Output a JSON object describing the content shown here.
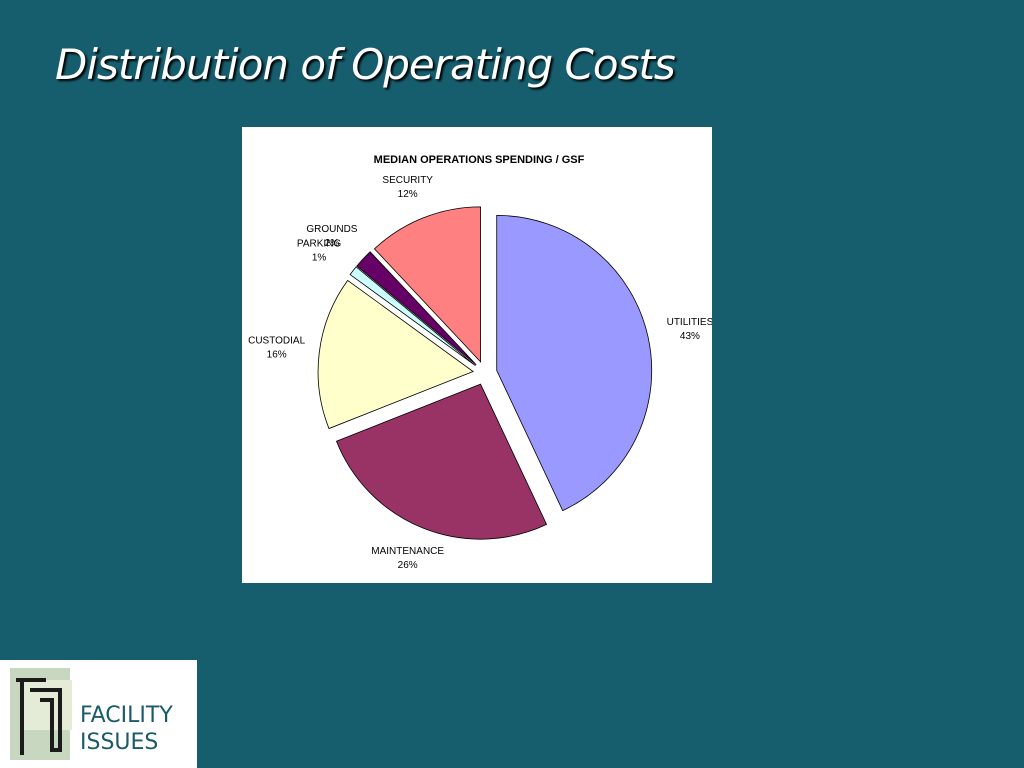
{
  "title": "Distribution of Operating Costs",
  "chart_data": {
    "type": "pie",
    "title": "MEDIAN OPERATIONS SPENDING / GSF",
    "categories": [
      "UTILITIES",
      "MAINTENANCE",
      "CUSTODIAL",
      "PARKING",
      "GROUNDS",
      "SECURITY"
    ],
    "values": [
      43,
      26,
      16,
      1,
      2,
      12
    ],
    "value_labels": [
      "43%",
      "26%",
      "16%",
      "1%",
      "2%",
      "12%"
    ],
    "colors": [
      "#9999ff",
      "#993366",
      "#ffffcc",
      "#ccffff",
      "#660066",
      "#ff8080"
    ]
  },
  "logo": {
    "lines": [
      "FACILITY",
      "ISSUES"
    ]
  }
}
